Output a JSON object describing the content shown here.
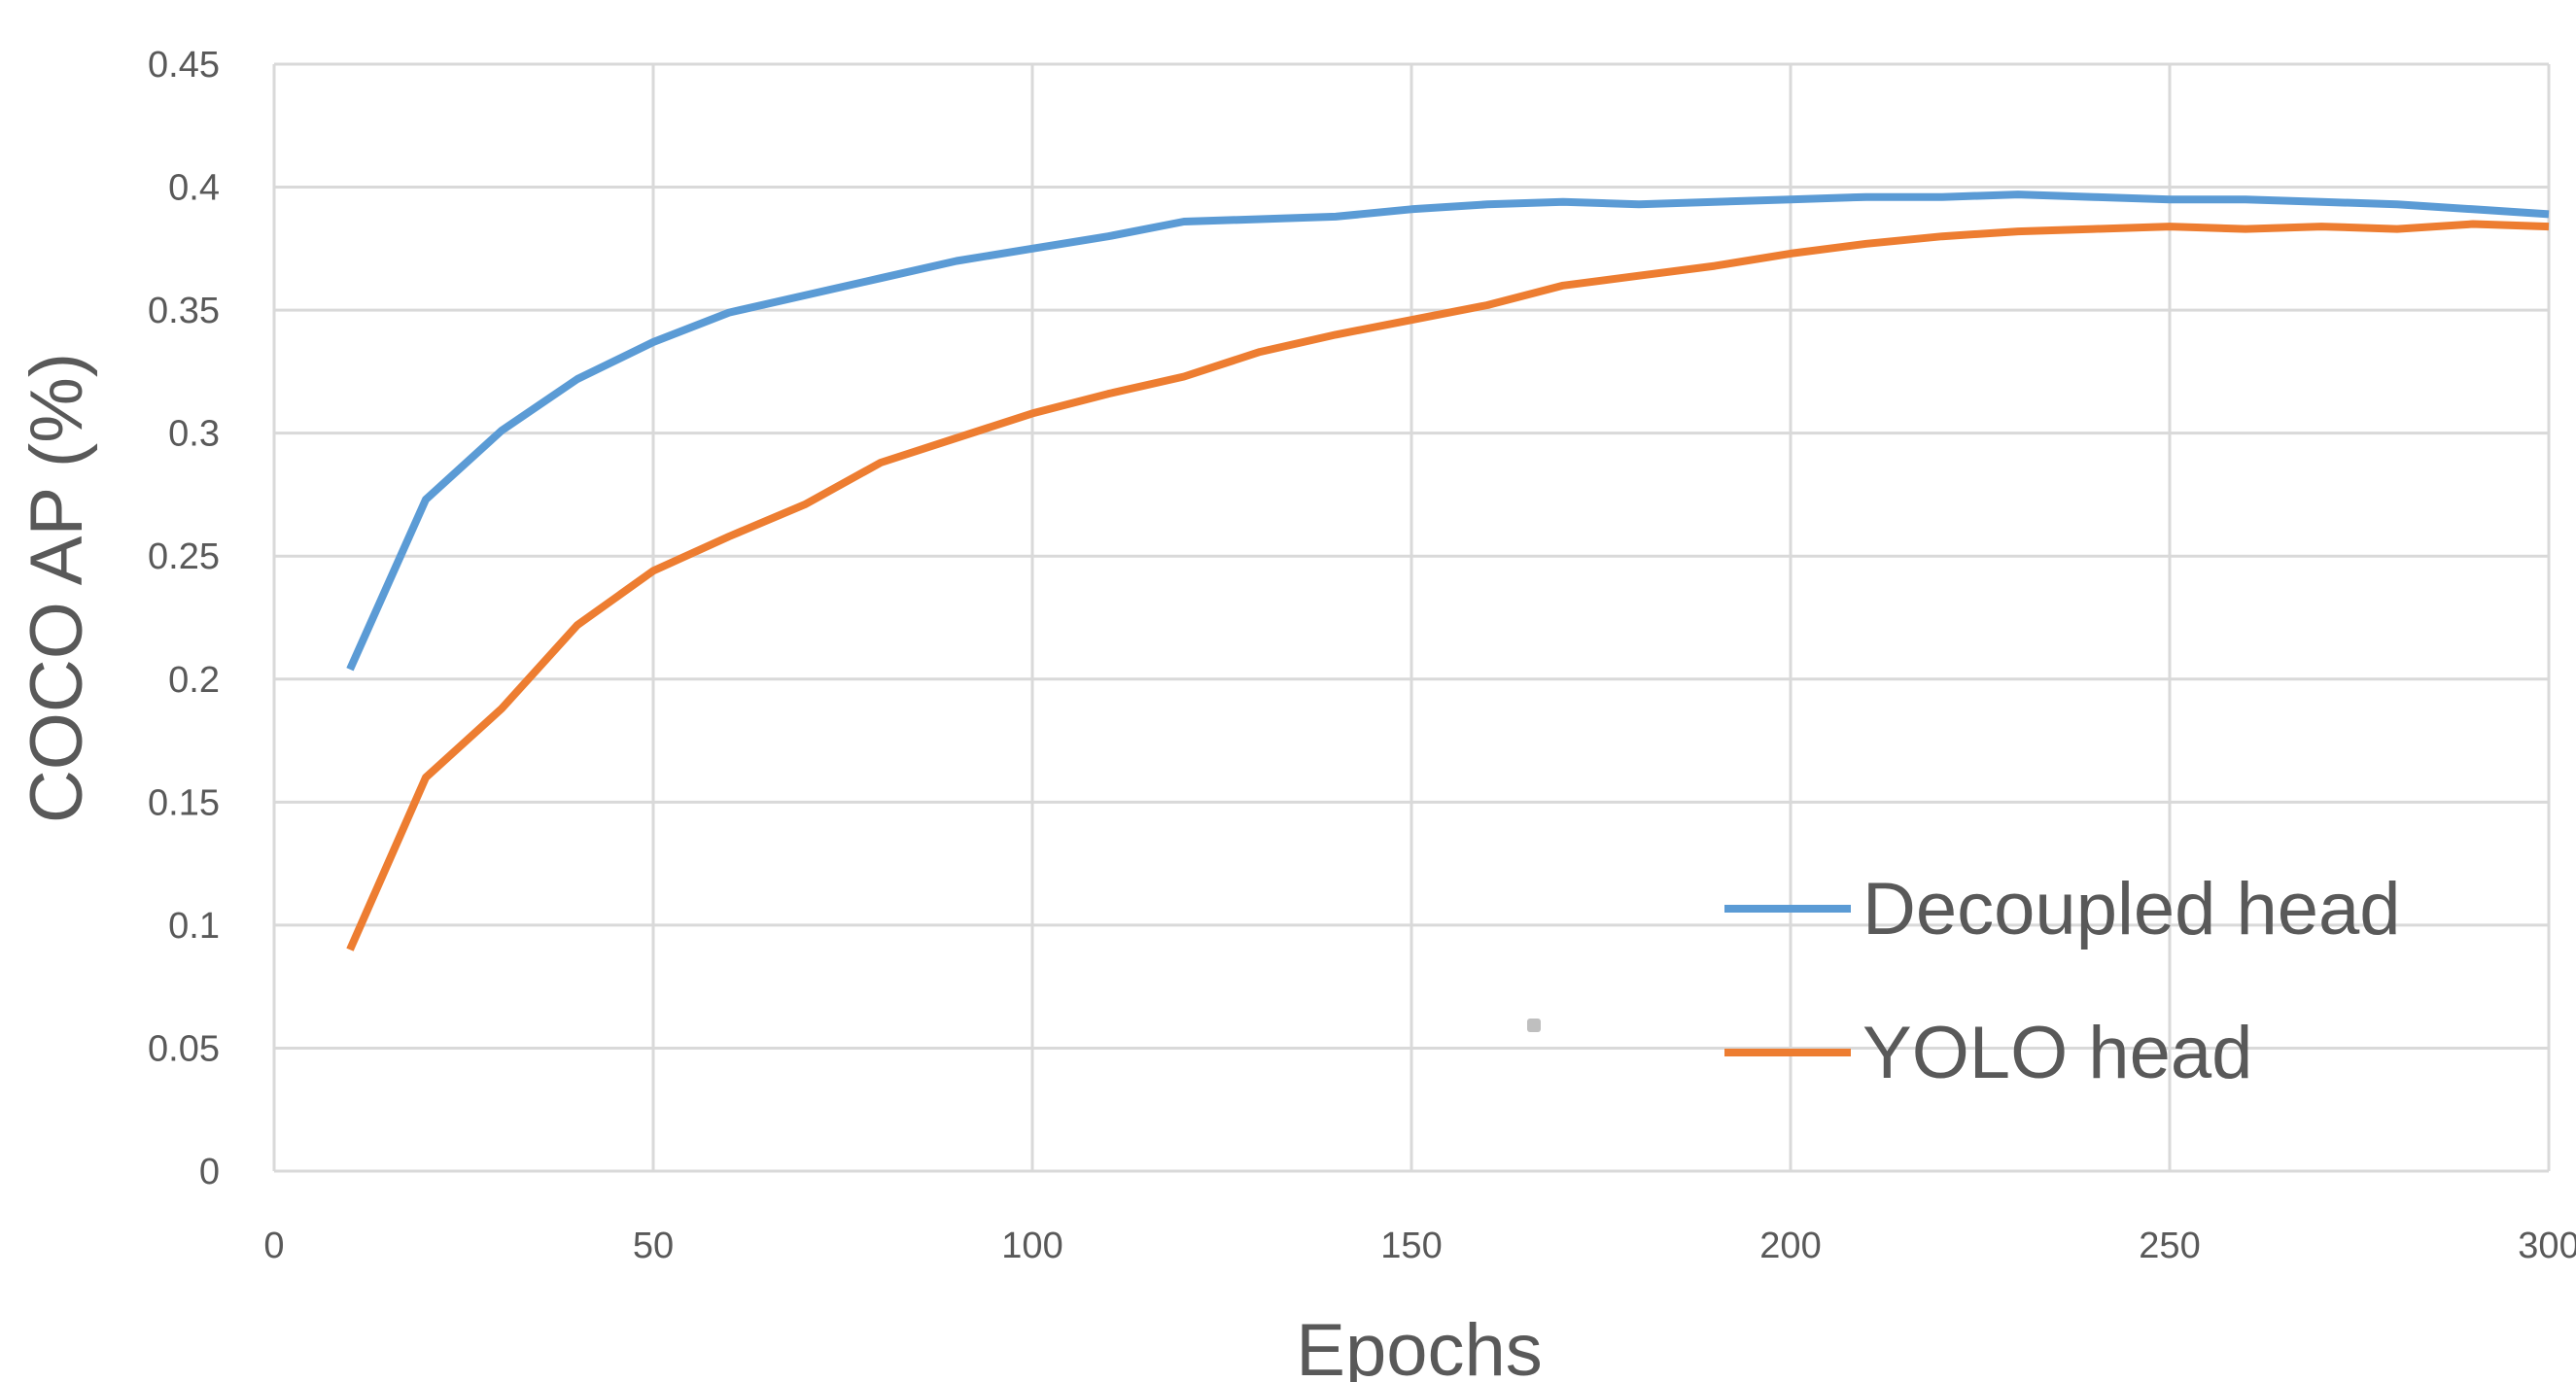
{
  "chart_data": {
    "type": "line",
    "title": "",
    "xlabel": "Epochs",
    "ylabel": "COCO AP (%)",
    "xlim": [
      0,
      300
    ],
    "ylim": [
      0,
      0.45
    ],
    "x_ticks": [
      0,
      50,
      100,
      150,
      200,
      250,
      300
    ],
    "y_ticks": [
      0,
      0.05,
      0.1,
      0.15,
      0.2,
      0.25,
      0.3,
      0.35,
      0.4,
      0.45
    ],
    "x_tick_labels": [
      "0",
      "50",
      "100",
      "150",
      "200",
      "250",
      "300"
    ],
    "y_tick_labels": [
      "0",
      "0.05",
      "0.1",
      "0.15",
      "0.2",
      "0.25",
      "0.3",
      "0.35",
      "0.4",
      "0.45"
    ],
    "grid": true,
    "legend_position": "bottom-right",
    "x": [
      10,
      20,
      30,
      40,
      50,
      60,
      70,
      80,
      90,
      100,
      110,
      120,
      130,
      140,
      150,
      160,
      170,
      180,
      190,
      200,
      210,
      220,
      230,
      240,
      250,
      260,
      270,
      280,
      290,
      300
    ],
    "series": [
      {
        "name": "Decoupled head",
        "color": "#5b9bd5",
        "values": [
          0.204,
          0.273,
          0.301,
          0.322,
          0.337,
          0.349,
          0.356,
          0.363,
          0.37,
          0.375,
          0.38,
          0.386,
          0.387,
          0.388,
          0.391,
          0.393,
          0.394,
          0.393,
          0.394,
          0.395,
          0.396,
          0.396,
          0.397,
          0.396,
          0.395,
          0.395,
          0.394,
          0.393,
          0.391,
          0.389
        ]
      },
      {
        "name": "YOLO head",
        "color": "#ed7d31",
        "values": [
          0.09,
          0.16,
          0.188,
          0.222,
          0.244,
          0.258,
          0.271,
          0.288,
          0.298,
          0.308,
          0.316,
          0.323,
          0.333,
          0.34,
          0.346,
          0.352,
          0.36,
          0.364,
          0.368,
          0.373,
          0.377,
          0.38,
          0.382,
          0.383,
          0.384,
          0.383,
          0.384,
          0.383,
          0.385,
          0.384
        ]
      }
    ]
  }
}
